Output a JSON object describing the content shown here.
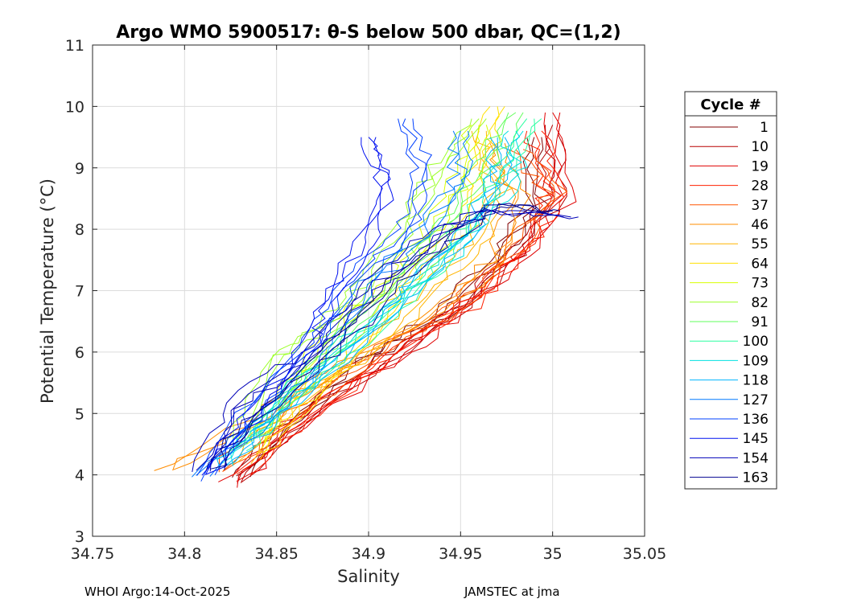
{
  "chart_data": {
    "type": "line",
    "title": "Argo WMO 5900517: θ-S below 500 dbar,  QC=(1,2)",
    "xlabel": "Salinity",
    "ylabel": "Potential Temperature (°C)",
    "xlim": [
      34.75,
      35.05
    ],
    "ylim": [
      3,
      11
    ],
    "x_ticks": [
      34.75,
      34.8,
      34.85,
      34.9,
      34.95,
      35,
      35.05
    ],
    "x_tick_labels": [
      "34.75",
      "34.8",
      "34.85",
      "34.9",
      "34.95",
      "35",
      "35.05"
    ],
    "y_ticks": [
      3,
      4,
      5,
      6,
      7,
      8,
      9,
      10,
      11
    ],
    "y_tick_labels": [
      "3",
      "4",
      "5",
      "6",
      "7",
      "8",
      "9",
      "10",
      "11"
    ],
    "grid": true,
    "legend": {
      "title": "Cycle #",
      "position": "right-outside",
      "entries": [
        "1",
        "10",
        "19",
        "28",
        "37",
        "46",
        "55",
        "64",
        "73",
        "82",
        "91",
        "100",
        "109",
        "118",
        "127",
        "136",
        "145",
        "154",
        "163"
      ],
      "colors": [
        "#800000",
        "#b80000",
        "#e00000",
        "#ff2000",
        "#ff5500",
        "#ff8c00",
        "#ffb400",
        "#ffe000",
        "#d8ff00",
        "#9cff2a",
        "#62ff5c",
        "#2affa0",
        "#00e0e0",
        "#00b4ff",
        "#0078ff",
        "#0040ff",
        "#0010f0",
        "#0000b8",
        "#00008f"
      ]
    },
    "series_note": "Each cycle is a theta-S profile; representative center-line points per cycle",
    "profiles": [
      {
        "cycle": 1,
        "points": [
          [
            34.83,
            3.95
          ],
          [
            34.86,
            4.9
          ],
          [
            34.9,
            5.9
          ],
          [
            34.94,
            6.6
          ],
          [
            34.97,
            7.5
          ],
          [
            34.99,
            8.4
          ],
          [
            34.99,
            9.5
          ]
        ]
      },
      {
        "cycle": 10,
        "points": [
          [
            34.83,
            3.9
          ],
          [
            34.87,
            5.0
          ],
          [
            34.91,
            5.9
          ],
          [
            34.95,
            6.7
          ],
          [
            34.98,
            7.6
          ],
          [
            35.0,
            8.5
          ],
          [
            35.0,
            9.7
          ]
        ]
      },
      {
        "cycle": 19,
        "points": [
          [
            34.825,
            3.85
          ],
          [
            34.86,
            4.8
          ],
          [
            34.92,
            6.0
          ],
          [
            34.955,
            6.8
          ],
          [
            34.985,
            7.6
          ],
          [
            35.005,
            8.5
          ],
          [
            35.0,
            9.9
          ]
        ]
      },
      {
        "cycle": 28,
        "points": [
          [
            34.83,
            4.0
          ],
          [
            34.87,
            5.0
          ],
          [
            34.92,
            6.1
          ],
          [
            34.96,
            6.9
          ],
          [
            34.99,
            7.8
          ],
          [
            35.0,
            8.6
          ],
          [
            34.99,
            9.6
          ]
        ]
      },
      {
        "cycle": 37,
        "points": [
          [
            34.82,
            4.1
          ],
          [
            34.86,
            5.0
          ],
          [
            34.91,
            6.1
          ],
          [
            34.95,
            6.8
          ],
          [
            34.98,
            7.7
          ],
          [
            35.0,
            8.6
          ],
          [
            34.98,
            9.3
          ]
        ]
      },
      {
        "cycle": 46,
        "points": [
          [
            34.79,
            4.05
          ],
          [
            34.85,
            5.1
          ],
          [
            34.89,
            5.8
          ],
          [
            34.94,
            6.7
          ],
          [
            34.97,
            7.5
          ],
          [
            34.98,
            8.5
          ],
          [
            34.97,
            9.4
          ]
        ]
      },
      {
        "cycle": 55,
        "points": [
          [
            34.83,
            4.2
          ],
          [
            34.86,
            5.2
          ],
          [
            34.9,
            6.0
          ],
          [
            34.93,
            6.9
          ],
          [
            34.96,
            7.8
          ],
          [
            34.97,
            8.7
          ],
          [
            34.96,
            9.6
          ]
        ]
      },
      {
        "cycle": 64,
        "points": [
          [
            34.84,
            4.3
          ],
          [
            34.87,
            5.3
          ],
          [
            34.9,
            6.2
          ],
          [
            34.92,
            7.1
          ],
          [
            34.95,
            8.0
          ],
          [
            34.96,
            8.9
          ],
          [
            34.97,
            10.0
          ]
        ]
      },
      {
        "cycle": 73,
        "points": [
          [
            34.84,
            4.5
          ],
          [
            34.86,
            5.5
          ],
          [
            34.88,
            6.3
          ],
          [
            34.91,
            7.1
          ],
          [
            34.93,
            7.9
          ],
          [
            34.95,
            8.8
          ],
          [
            34.96,
            9.7
          ]
        ]
      },
      {
        "cycle": 82,
        "points": [
          [
            34.83,
            4.6
          ],
          [
            34.85,
            5.9
          ],
          [
            34.88,
            6.5
          ],
          [
            34.9,
            7.2
          ],
          [
            34.92,
            8.1
          ],
          [
            34.94,
            9.0
          ],
          [
            34.96,
            9.8
          ]
        ]
      },
      {
        "cycle": 91,
        "points": [
          [
            34.84,
            4.6
          ],
          [
            34.86,
            5.5
          ],
          [
            34.89,
            6.4
          ],
          [
            34.92,
            7.3
          ],
          [
            34.94,
            8.0
          ],
          [
            34.96,
            8.9
          ],
          [
            34.98,
            9.9
          ]
        ]
      },
      {
        "cycle": 100,
        "points": [
          [
            34.83,
            4.4
          ],
          [
            34.86,
            5.3
          ],
          [
            34.9,
            6.3
          ],
          [
            34.93,
            7.1
          ],
          [
            34.95,
            7.9
          ],
          [
            34.97,
            8.8
          ],
          [
            34.99,
            9.8
          ]
        ]
      },
      {
        "cycle": 109,
        "points": [
          [
            34.82,
            4.2
          ],
          [
            34.85,
            5.1
          ],
          [
            34.89,
            6.2
          ],
          [
            34.93,
            7.2
          ],
          [
            34.96,
            8.0
          ],
          [
            34.98,
            8.9
          ],
          [
            34.98,
            9.6
          ]
        ]
      },
      {
        "cycle": 118,
        "points": [
          [
            34.82,
            4.1
          ],
          [
            34.85,
            5.0
          ],
          [
            34.89,
            6.0
          ],
          [
            34.92,
            7.0
          ],
          [
            34.95,
            7.8
          ],
          [
            34.97,
            8.7
          ],
          [
            34.97,
            9.5
          ]
        ]
      },
      {
        "cycle": 127,
        "points": [
          [
            34.81,
            4.0
          ],
          [
            34.85,
            5.1
          ],
          [
            34.88,
            6.1
          ],
          [
            34.9,
            7.1
          ],
          [
            34.93,
            7.9
          ],
          [
            34.95,
            8.8
          ],
          [
            34.95,
            9.6
          ]
        ]
      },
      {
        "cycle": 136,
        "points": [
          [
            34.81,
            3.95
          ],
          [
            34.84,
            5.2
          ],
          [
            34.87,
            6.2
          ],
          [
            34.89,
            7.2
          ],
          [
            34.92,
            8.0
          ],
          [
            34.93,
            8.9
          ],
          [
            34.92,
            9.8
          ]
        ]
      },
      {
        "cycle": 145,
        "points": [
          [
            34.81,
            4.0
          ],
          [
            34.84,
            5.1
          ],
          [
            34.87,
            6.1
          ],
          [
            34.88,
            7.0
          ],
          [
            34.9,
            7.9
          ],
          [
            34.91,
            8.8
          ],
          [
            34.9,
            9.5
          ]
        ]
      },
      {
        "cycle": 154,
        "points": [
          [
            34.81,
            4.1
          ],
          [
            34.83,
            5.2
          ],
          [
            34.87,
            6.0
          ],
          [
            34.9,
            7.0
          ],
          [
            34.93,
            7.8
          ],
          [
            34.96,
            8.3
          ],
          [
            35.01,
            8.2
          ]
        ]
      },
      {
        "cycle": 163,
        "points": [
          [
            34.815,
            4.05
          ],
          [
            34.84,
            5.0
          ],
          [
            34.88,
            6.0
          ],
          [
            34.91,
            7.0
          ],
          [
            34.94,
            7.8
          ],
          [
            34.97,
            8.4
          ],
          [
            35.0,
            8.3
          ]
        ]
      }
    ]
  },
  "footer": {
    "left": "WHOI Argo:14-Oct-2025",
    "right": "JAMSTEC at jma"
  }
}
